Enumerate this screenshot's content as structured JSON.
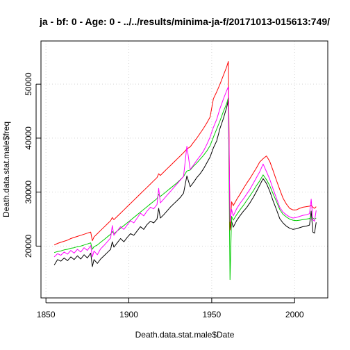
{
  "chart_data": {
    "type": "line",
    "title": "ja - bf: 0  - Age: 0 -  ../../results/minima-ja-f/20171013-015613:749/",
    "xlabel": "Death.data.stat.male$Date",
    "ylabel": "Death.data.stat.male$freq",
    "xlim": [
      1847,
      2020
    ],
    "ylim": [
      10400,
      58000
    ],
    "x_ticks": [
      1850,
      1900,
      1950,
      2000
    ],
    "y_ticks": [
      20000,
      30000,
      40000,
      50000
    ],
    "grid": true,
    "legend": "none",
    "x": [
      1855,
      1857,
      1859,
      1861,
      1863,
      1865,
      1867,
      1869,
      1871,
      1873,
      1875,
      1877,
      1878,
      1879,
      1881,
      1883,
      1885,
      1887,
      1889,
      1890,
      1891,
      1893,
      1895,
      1897,
      1899,
      1901,
      1903,
      1905,
      1907,
      1909,
      1911,
      1913,
      1915,
      1917,
      1918,
      1919,
      1921,
      1923,
      1925,
      1927,
      1929,
      1931,
      1933,
      1935,
      1937,
      1939,
      1941,
      1943,
      1945,
      1947,
      1949,
      1951,
      1953,
      1955,
      1957,
      1959,
      1960,
      1961,
      1962,
      1963,
      1965,
      1967,
      1969,
      1971,
      1973,
      1975,
      1977,
      1979,
      1981,
      1983,
      1985,
      1987,
      1989,
      1991,
      1993,
      1995,
      1997,
      1999,
      2001,
      2003,
      2005,
      2007,
      2009,
      2010,
      2011,
      2012,
      2013
    ],
    "series": [
      {
        "color": "#000000",
        "values": [
          16500,
          17500,
          17200,
          17800,
          17300,
          18000,
          17500,
          18200,
          17600,
          18400,
          17800,
          18700,
          16200,
          17500,
          16800,
          17600,
          18200,
          18800,
          19400,
          20800,
          19800,
          20600,
          21400,
          20800,
          21600,
          22300,
          22000,
          22800,
          23600,
          23100,
          24000,
          24600,
          24300,
          25000,
          27000,
          25200,
          25800,
          26500,
          27200,
          27800,
          28400,
          29000,
          29800,
          33000,
          31000,
          31800,
          32700,
          33400,
          34300,
          35400,
          36500,
          38200,
          39500,
          41800,
          43600,
          45700,
          47000,
          23000,
          24600,
          23500,
          24700,
          25600,
          26400,
          27100,
          28000,
          29000,
          30100,
          31300,
          32500,
          31600,
          30200,
          28400,
          26800,
          25100,
          24300,
          23700,
          23300,
          23100,
          23200,
          23400,
          23600,
          23700,
          23900,
          26500,
          22600,
          22400,
          24400
        ]
      },
      {
        "color": "#00cc00",
        "values": [
          18800,
          19000,
          19100,
          19300,
          19400,
          19600,
          19700,
          19900,
          20000,
          20200,
          20400,
          20600,
          19400,
          19900,
          20200,
          20700,
          21200,
          21700,
          22200,
          22700,
          22300,
          22800,
          23300,
          23800,
          24300,
          24800,
          25300,
          25800,
          26300,
          26800,
          27300,
          27800,
          28300,
          28800,
          29600,
          29200,
          29700,
          30200,
          30700,
          31200,
          31700,
          32300,
          32900,
          33900,
          34100,
          34800,
          35400,
          36100,
          36800,
          37600,
          38600,
          40200,
          41700,
          43200,
          44900,
          46400,
          47500,
          13800,
          25500,
          24800,
          25800,
          26700,
          27500,
          28400,
          29300,
          30200,
          31200,
          32100,
          33200,
          32300,
          31200,
          29700,
          28300,
          26800,
          25900,
          25400,
          25000,
          24800,
          24700,
          24800,
          24900,
          25000,
          25100,
          25400,
          25200,
          25000,
          25200
        ]
      },
      {
        "color": "#ff0000",
        "values": [
          20200,
          20500,
          20700,
          20900,
          21100,
          21400,
          21600,
          21800,
          22000,
          22200,
          22400,
          22600,
          21000,
          21700,
          22300,
          22900,
          23500,
          24100,
          24700,
          25300,
          24900,
          25500,
          26100,
          26700,
          27300,
          27900,
          28500,
          29100,
          29700,
          30300,
          30900,
          31500,
          32100,
          32700,
          33400,
          33100,
          33700,
          34300,
          34900,
          35500,
          36100,
          36700,
          37300,
          38000,
          38400,
          39200,
          40000,
          40900,
          41800,
          42800,
          43900,
          47300,
          48600,
          50000,
          51600,
          53200,
          54200,
          23000,
          28200,
          27500,
          28600,
          29600,
          30600,
          31600,
          32500,
          33500,
          34500,
          35600,
          36200,
          36700,
          35700,
          34000,
          32200,
          30500,
          28900,
          27800,
          27000,
          26700,
          26700,
          27000,
          27200,
          27300,
          27400,
          27600,
          27200,
          27000,
          27300
        ]
      },
      {
        "color": "#ff00ff",
        "values": [
          18000,
          18600,
          18300,
          18900,
          18500,
          19200,
          18700,
          19400,
          18900,
          19700,
          19200,
          20100,
          18000,
          19100,
          18400,
          19500,
          20100,
          20800,
          21500,
          23800,
          22000,
          22800,
          23600,
          23100,
          23900,
          24700,
          24300,
          25200,
          26100,
          25600,
          26500,
          27200,
          26900,
          27700,
          30700,
          28000,
          28700,
          29400,
          30100,
          30800,
          31500,
          32200,
          32900,
          38500,
          34200,
          35000,
          35900,
          36700,
          37600,
          38800,
          40200,
          42000,
          43500,
          45500,
          47200,
          48800,
          49500,
          24500,
          26800,
          25600,
          26900,
          27900,
          28700,
          29600,
          30500,
          31600,
          32700,
          33800,
          35200,
          33800,
          32400,
          30600,
          28900,
          27200,
          26300,
          25800,
          25400,
          25200,
          25300,
          25500,
          25700,
          25800,
          26000,
          28700,
          24900,
          24600,
          26600
        ]
      }
    ]
  }
}
